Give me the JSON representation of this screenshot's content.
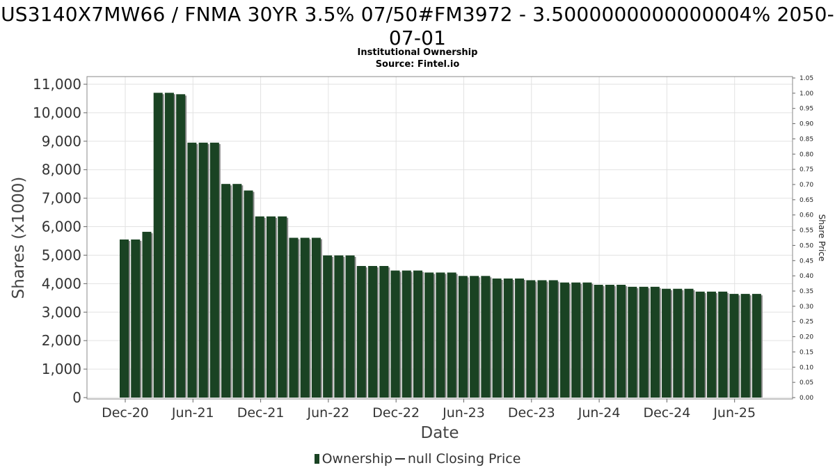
{
  "chart_data": {
    "type": "bar",
    "title": "US3140X7MW66 / FNMA 30YR 3.5% 07/50#FM3972 - 3.5000000000000004% 2050-07-01",
    "title_line1": "US3140X7MW66 / FNMA 30YR 3.5% 07/50#FM3972 - 3.5000000000000004% 2050-",
    "title_line2": "07-01",
    "subtitle": "Institutional Ownership",
    "source": "Source: Fintel.io",
    "xlabel": "Date",
    "ylabel": "Shares (x1000)",
    "y2label": "Share Price",
    "ylim": [
      0,
      11200
    ],
    "y2lim": [
      0,
      1.05
    ],
    "yticks": [
      "0",
      "1,000",
      "2,000",
      "3,000",
      "4,000",
      "5,000",
      "6,000",
      "7,000",
      "8,000",
      "9,000",
      "10,000",
      "11,000"
    ],
    "y2ticks": [
      "0.00",
      "0.05",
      "0.10",
      "0.15",
      "0.20",
      "0.25",
      "0.30",
      "0.35",
      "0.40",
      "0.45",
      "0.50",
      "0.55",
      "0.60",
      "0.65",
      "0.70",
      "0.75",
      "0.80",
      "0.85",
      "0.90",
      "0.95",
      "1.00",
      "1.05"
    ],
    "xticks": [
      "Dec-20",
      "Jun-21",
      "Dec-21",
      "Jun-22",
      "Dec-22",
      "Jun-23",
      "Dec-23",
      "Jun-24",
      "Dec-24",
      "Jun-25"
    ],
    "grid": true,
    "legend_position": "bottom",
    "series": [
      {
        "name": "Ownership",
        "color": "#1a4323",
        "values": [
          5550,
          5550,
          5820,
          10700,
          10700,
          10650,
          8950,
          8950,
          8950,
          7500,
          7500,
          7270,
          6360,
          6360,
          6360,
          5610,
          5610,
          5610,
          4990,
          4990,
          4990,
          4620,
          4620,
          4620,
          4460,
          4460,
          4460,
          4390,
          4390,
          4390,
          4270,
          4270,
          4270,
          4180,
          4180,
          4180,
          4120,
          4120,
          4120,
          4040,
          4040,
          4040,
          3960,
          3960,
          3960,
          3890,
          3890,
          3890,
          3820,
          3820,
          3820,
          3720,
          3720,
          3720,
          3640,
          3640,
          3640
        ]
      },
      {
        "name": "null Closing Price",
        "color": "#333333",
        "values": []
      }
    ]
  },
  "legend": {
    "ownership_label": "Ownership",
    "price_label": "null Closing Price"
  }
}
